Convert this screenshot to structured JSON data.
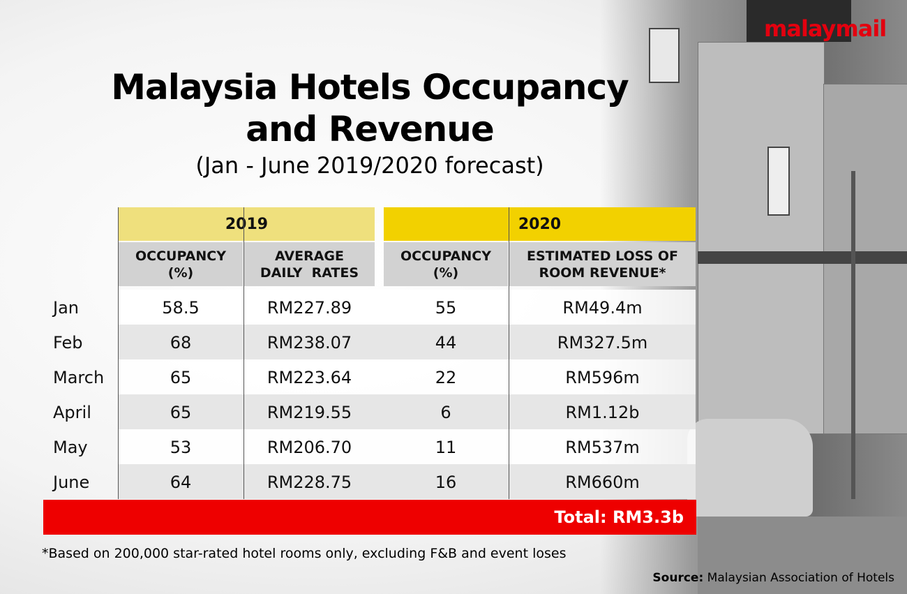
{
  "logo": "malaymail",
  "title": [
    "Malaysia Hotels Occupancy",
    "and Revenue"
  ],
  "subtitle": "(Jan - June 2019/2020 forecast)",
  "table": {
    "groups": [
      "2019",
      "2020"
    ],
    "columns": [
      [
        "OCCUPANCY",
        "(%)"
      ],
      [
        "AVERAGE",
        "DAILY  RATES"
      ],
      [
        "OCCUPANCY",
        "(%)"
      ],
      [
        "ESTIMATED LOSS OF",
        "ROOM REVENUE*"
      ]
    ],
    "rows": [
      [
        "Jan",
        "58.5",
        "RM227.89",
        "55",
        "RM49.4m"
      ],
      [
        "Feb",
        "68",
        "RM238.07",
        "44",
        "RM327.5m"
      ],
      [
        "March",
        "65",
        "RM223.64",
        "22",
        "RM596m"
      ],
      [
        "April",
        "65",
        "RM219.55",
        "6",
        "RM1.12b"
      ],
      [
        "May",
        "53",
        "RM206.70",
        "11",
        "RM537m"
      ],
      [
        "June",
        "64",
        "RM228.75",
        "16",
        "RM660m"
      ]
    ],
    "total": "Total: RM3.3b"
  },
  "footnote": "*Based on 200,000 star-rated hotel rooms only, excluding F&B and event loses",
  "source": {
    "label": "Source:",
    "text": "Malaysian Association of Hotels"
  }
}
